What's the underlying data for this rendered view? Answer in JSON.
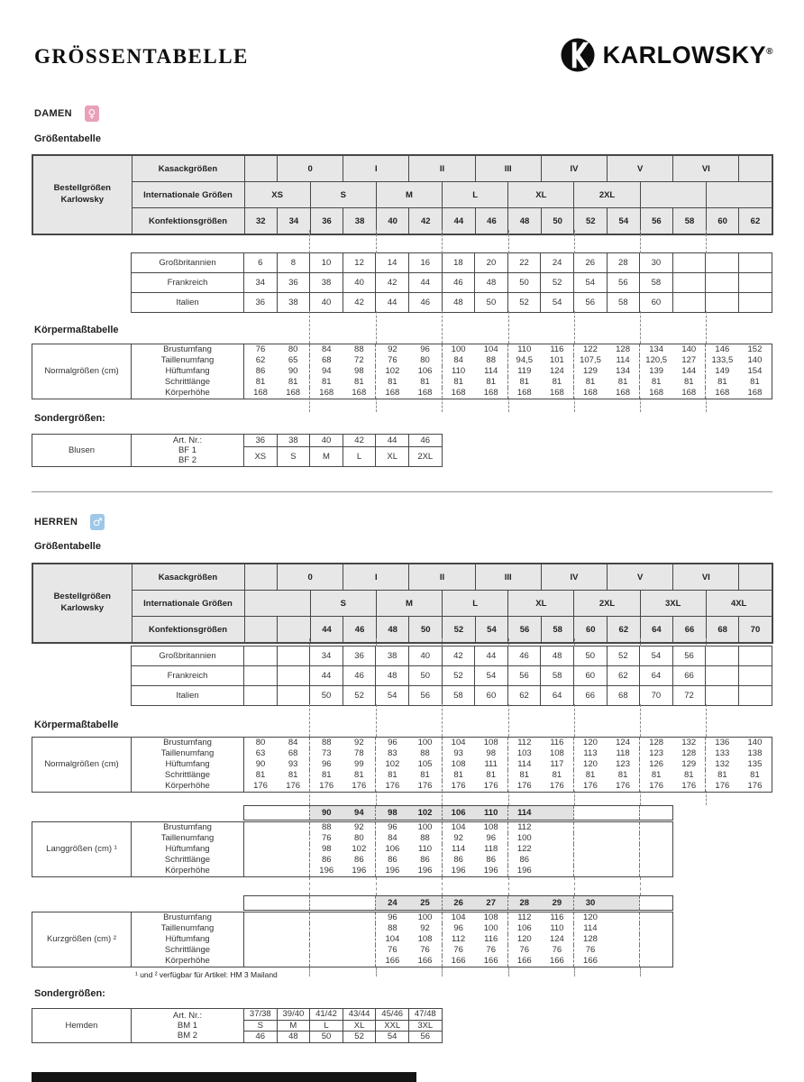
{
  "header": {
    "title": "GRÖSSENTABELLE",
    "brand": "KARLOWSKY",
    "registered": "®"
  },
  "colors": {
    "damen_badge": "#e9a1b7",
    "herren_badge": "#9fc7e8",
    "bar_gray": "#e2e2e2",
    "header_gray": "#e7e7e7"
  },
  "labels": {
    "groessentabelle": "Größentabelle",
    "bestellgroessen": "Bestellgrößen",
    "karlowsky": "Karlowsky",
    "kasack": "Kasackgrößen",
    "intl": "Internationale Größen",
    "konfektion": "Konfektionsgrößen",
    "gb": "Großbritannien",
    "fr": "Frankreich",
    "it": "Italien",
    "koerpermass": "Körpermaßtabelle",
    "sonder": "Sondergrößen:",
    "normalgroessen": "Normalgrößen (cm)",
    "langgroessen": "Langgrößen (cm) ¹",
    "kurzgroessen": "Kurzgrößen (cm) ²",
    "brust": "Brustumfang",
    "taille": "Taillenumfang",
    "huefte": "Hüftumfang",
    "schritt": "Schrittlänge",
    "koerper": "Körperhöhe",
    "footnote": "¹ und ² verfügbar für Artikel: HM 3 Mailand"
  },
  "damen": {
    "title": "DAMEN",
    "symbol": "♀",
    "kasack": [
      "",
      "0",
      "I",
      "II",
      "III",
      "IV",
      "V",
      "VI",
      ""
    ],
    "intl": [
      "XS",
      "S",
      "M",
      "L",
      "XL",
      "2XL",
      "",
      ""
    ],
    "konfektion": [
      "32",
      "34",
      "36",
      "38",
      "40",
      "42",
      "44",
      "46",
      "48",
      "50",
      "52",
      "54",
      "56",
      "58",
      "60",
      "62"
    ],
    "gb": [
      "6",
      "8",
      "10",
      "12",
      "14",
      "16",
      "18",
      "20",
      "22",
      "24",
      "26",
      "28",
      "30",
      "",
      "",
      ""
    ],
    "fr": [
      "34",
      "36",
      "38",
      "40",
      "42",
      "44",
      "46",
      "48",
      "50",
      "52",
      "54",
      "56",
      "58",
      "",
      "",
      ""
    ],
    "it": [
      "36",
      "38",
      "40",
      "42",
      "44",
      "46",
      "48",
      "50",
      "52",
      "54",
      "56",
      "58",
      "60",
      "",
      "",
      ""
    ],
    "normal": {
      "brust": [
        "76",
        "80",
        "84",
        "88",
        "92",
        "96",
        "100",
        "104",
        "110",
        "116",
        "122",
        "128",
        "134",
        "140",
        "146",
        "152"
      ],
      "taille": [
        "62",
        "65",
        "68",
        "72",
        "76",
        "80",
        "84",
        "88",
        "94,5",
        "101",
        "107,5",
        "114",
        "120,5",
        "127",
        "133,5",
        "140"
      ],
      "huefte": [
        "86",
        "90",
        "94",
        "98",
        "102",
        "106",
        "110",
        "114",
        "119",
        "124",
        "129",
        "134",
        "139",
        "144",
        "149",
        "154"
      ],
      "schritt": [
        "81",
        "81",
        "81",
        "81",
        "81",
        "81",
        "81",
        "81",
        "81",
        "81",
        "81",
        "81",
        "81",
        "81",
        "81",
        "81"
      ],
      "koerper": [
        "168",
        "168",
        "168",
        "168",
        "168",
        "168",
        "168",
        "168",
        "168",
        "168",
        "168",
        "168",
        "168",
        "168",
        "168",
        "168"
      ]
    },
    "sonder": {
      "label": "Blusen",
      "art": [
        "Art. Nr.:",
        "BF 1",
        "BF 2"
      ],
      "sizes": [
        "36",
        "38",
        "40",
        "42",
        "44",
        "46"
      ],
      "intl": [
        "XS",
        "S",
        "M",
        "L",
        "XL",
        "2XL"
      ]
    }
  },
  "herren": {
    "title": "HERREN",
    "symbol": "♂",
    "kasack": [
      "",
      "0",
      "I",
      "II",
      "III",
      "IV",
      "V",
      "VI",
      ""
    ],
    "intl": [
      "",
      "S",
      "M",
      "L",
      "XL",
      "2XL",
      "3XL",
      "4XL"
    ],
    "konfektion": [
      "",
      "",
      "44",
      "46",
      "48",
      "50",
      "52",
      "54",
      "56",
      "58",
      "60",
      "62",
      "64",
      "66",
      "68",
      "70"
    ],
    "gb": [
      "",
      "",
      "34",
      "36",
      "38",
      "40",
      "42",
      "44",
      "46",
      "48",
      "50",
      "52",
      "54",
      "56",
      "",
      ""
    ],
    "fr": [
      "",
      "",
      "44",
      "46",
      "48",
      "50",
      "52",
      "54",
      "56",
      "58",
      "60",
      "62",
      "64",
      "66",
      "",
      ""
    ],
    "it": [
      "",
      "",
      "50",
      "52",
      "54",
      "56",
      "58",
      "60",
      "62",
      "64",
      "66",
      "68",
      "70",
      "72",
      "",
      ""
    ],
    "normal": {
      "brust": [
        "80",
        "84",
        "88",
        "92",
        "96",
        "100",
        "104",
        "108",
        "112",
        "116",
        "120",
        "124",
        "128",
        "132",
        "136",
        "140"
      ],
      "taille": [
        "63",
        "68",
        "73",
        "78",
        "83",
        "88",
        "93",
        "98",
        "103",
        "108",
        "113",
        "118",
        "123",
        "128",
        "133",
        "138"
      ],
      "huefte": [
        "90",
        "93",
        "96",
        "99",
        "102",
        "105",
        "108",
        "111",
        "114",
        "117",
        "120",
        "123",
        "126",
        "129",
        "132",
        "135"
      ],
      "schritt": [
        "81",
        "81",
        "81",
        "81",
        "81",
        "81",
        "81",
        "81",
        "81",
        "81",
        "81",
        "81",
        "81",
        "81",
        "81",
        "81"
      ],
      "koerper": [
        "176",
        "176",
        "176",
        "176",
        "176",
        "176",
        "176",
        "176",
        "176",
        "176",
        "176",
        "176",
        "176",
        "176",
        "176",
        "176"
      ]
    },
    "lang_bar": [
      "",
      "90",
      "94",
      "98",
      "102",
      "106",
      "110",
      "114",
      "",
      "",
      ""
    ],
    "lang": {
      "brust": [
        "",
        "88",
        "92",
        "96",
        "100",
        "104",
        "108",
        "112",
        "",
        "",
        ""
      ],
      "taille": [
        "",
        "76",
        "80",
        "84",
        "88",
        "92",
        "96",
        "100",
        "",
        "",
        ""
      ],
      "huefte": [
        "",
        "98",
        "102",
        "106",
        "110",
        "114",
        "118",
        "122",
        "",
        "",
        ""
      ],
      "schritt": [
        "",
        "86",
        "86",
        "86",
        "86",
        "86",
        "86",
        "86",
        "",
        "",
        ""
      ],
      "koerper": [
        "",
        "196",
        "196",
        "196",
        "196",
        "196",
        "196",
        "196",
        "",
        "",
        ""
      ]
    },
    "kurz_bar": [
      "",
      "",
      "24",
      "25",
      "26",
      "27",
      "28",
      "29",
      "30",
      "",
      ""
    ],
    "kurz": {
      "brust": [
        "",
        "",
        "96",
        "100",
        "104",
        "108",
        "112",
        "116",
        "120",
        "",
        ""
      ],
      "taille": [
        "",
        "",
        "88",
        "92",
        "96",
        "100",
        "106",
        "110",
        "114",
        "",
        ""
      ],
      "huefte": [
        "",
        "",
        "104",
        "108",
        "112",
        "116",
        "120",
        "124",
        "128",
        "",
        ""
      ],
      "schritt": [
        "",
        "",
        "76",
        "76",
        "76",
        "76",
        "76",
        "76",
        "76",
        "",
        ""
      ],
      "koerper": [
        "",
        "",
        "166",
        "166",
        "166",
        "166",
        "166",
        "166",
        "166",
        "",
        ""
      ]
    },
    "sonder": {
      "label": "Hemden",
      "art": [
        "Art. Nr.:",
        "BM 1",
        "BM 2"
      ],
      "sizes": [
        "37/38",
        "39/40",
        "41/42",
        "43/44",
        "45/46",
        "47/48"
      ],
      "intl": [
        "S",
        "M",
        "L",
        "XL",
        "XXL",
        "3XL"
      ],
      "konfektion": [
        "46",
        "48",
        "50",
        "52",
        "54",
        "56"
      ]
    }
  }
}
